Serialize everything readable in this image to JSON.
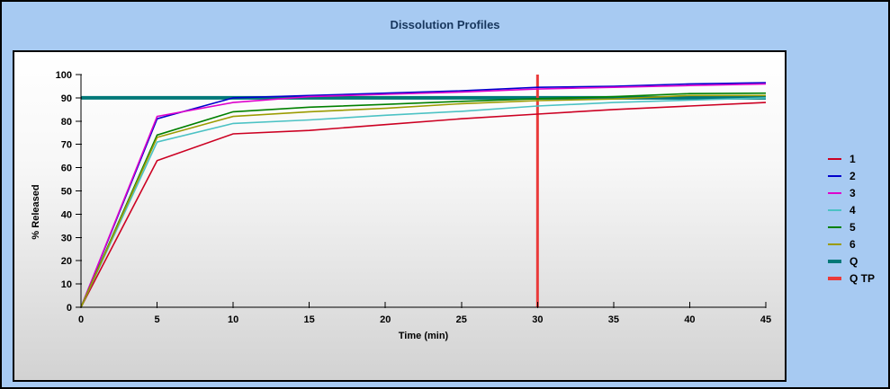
{
  "window": {
    "background_color": "#A7CAF2",
    "panel_border_color": "#000000",
    "title_color": "#17365D"
  },
  "chart_data": {
    "type": "line",
    "title": "Dissolution Profiles",
    "xlabel": "Time (min)",
    "ylabel": "% Released",
    "xlim": [
      0,
      45
    ],
    "ylim": [
      0,
      100
    ],
    "x_ticks": [
      0,
      5,
      10,
      15,
      20,
      25,
      30,
      35,
      40,
      45
    ],
    "y_ticks": [
      0,
      10,
      20,
      30,
      40,
      50,
      60,
      70,
      80,
      90,
      100
    ],
    "grid": false,
    "legend_position": "right",
    "x": [
      0,
      5,
      10,
      15,
      20,
      25,
      30,
      35,
      40,
      45
    ],
    "series": [
      {
        "name": "1",
        "color": "#CC0022",
        "width": 1.6,
        "values": [
          0,
          63,
          74.5,
          76,
          78.5,
          81,
          83,
          85,
          86.5,
          88
        ]
      },
      {
        "name": "2",
        "color": "#0000CC",
        "width": 1.6,
        "values": [
          0,
          81,
          90,
          91,
          92,
          93,
          94.5,
          95,
          96,
          96.5
        ]
      },
      {
        "name": "3",
        "color": "#DD00CC",
        "width": 1.6,
        "values": [
          0,
          82,
          88,
          90.5,
          91.5,
          92.5,
          93.8,
          94.5,
          95.3,
          96
        ]
      },
      {
        "name": "4",
        "color": "#4CC2C4",
        "width": 1.6,
        "values": [
          0,
          71,
          79,
          80.5,
          82.5,
          84.2,
          86.5,
          88,
          89,
          90
        ]
      },
      {
        "name": "5",
        "color": "#008000",
        "width": 1.6,
        "values": [
          0,
          74,
          84,
          86,
          87.2,
          88.5,
          89.6,
          90.5,
          91.8,
          92
        ]
      },
      {
        "name": "6",
        "color": "#9B9B00",
        "width": 1.6,
        "values": [
          0,
          73,
          82,
          84,
          85.5,
          87.5,
          88.8,
          89.5,
          91,
          91
        ]
      }
    ],
    "reference_lines": [
      {
        "name": "Q",
        "orientation": "horizontal",
        "value": 90,
        "color": "#007878",
        "width": 4
      },
      {
        "name": "Q TP",
        "orientation": "vertical",
        "value": 30,
        "color": "#EA3A3A",
        "width": 3
      }
    ],
    "legend": [
      {
        "label": "1",
        "color": "#CC0022",
        "thick": false
      },
      {
        "label": "2",
        "color": "#0000CC",
        "thick": false
      },
      {
        "label": "3",
        "color": "#DD00CC",
        "thick": false
      },
      {
        "label": "4",
        "color": "#4CC2C4",
        "thick": false
      },
      {
        "label": "5",
        "color": "#008000",
        "thick": false
      },
      {
        "label": "6",
        "color": "#9B9B00",
        "thick": false
      },
      {
        "label": "Q",
        "color": "#007878",
        "thick": true
      },
      {
        "label": "Q TP",
        "color": "#EA3A3A",
        "thick": true
      }
    ]
  }
}
